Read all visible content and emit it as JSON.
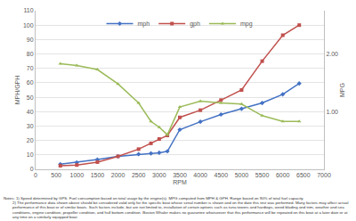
{
  "chart_data": {
    "type": "line",
    "x_label": "RPM",
    "y_label": "MPH/GPH",
    "y2_label": "MPG",
    "x": [
      600,
      1000,
      1500,
      2000,
      2500,
      2800,
      3000,
      3200,
      3500,
      4000,
      4500,
      5000,
      5500,
      6000,
      6400
    ],
    "series": [
      {
        "name": "mph",
        "color": "#4472c4",
        "marker": "diamond",
        "values": [
          3.5,
          4.8,
          6.8,
          9.0,
          10.5,
          11.0,
          11.5,
          12.5,
          27.5,
          33.0,
          38.0,
          42.0,
          46.0,
          52.0,
          59.5
        ]
      },
      {
        "name": "gph",
        "color": "#c0504d",
        "marker": "square",
        "values": [
          2.5,
          3.0,
          5.0,
          9.0,
          14.0,
          18.0,
          21.0,
          23.5,
          36.0,
          41.0,
          48.0,
          55.0,
          75.0,
          93.0,
          100.0
        ]
      },
      {
        "name": "mpg",
        "color": "#9bbb59",
        "marker": "triangle-up",
        "axis": "y2",
        "values": [
          1.83,
          1.8,
          1.73,
          1.48,
          1.15,
          0.83,
          0.73,
          0.6,
          1.08,
          1.18,
          1.15,
          1.13,
          0.93,
          0.83,
          0.83
        ]
      }
    ],
    "xlim": [
      0,
      7000
    ],
    "xticks": [
      0,
      500,
      1000,
      1500,
      2000,
      2500,
      3000,
      3500,
      4000,
      4500,
      5000,
      5500,
      6000,
      6500,
      7000
    ],
    "ylim": [
      0,
      110
    ],
    "yticks": [
      0,
      10,
      20,
      30,
      40,
      50,
      60,
      70,
      80,
      90,
      100,
      110
    ],
    "y2lim": [
      0,
      2.75
    ],
    "y2ticks": [
      {
        "value": 1,
        "label": "1.00"
      },
      {
        "value": 2,
        "label": "2.00"
      }
    ],
    "grid": true,
    "legend": "top",
    "annotations": [
      "Notes: 1) Speed determined by GPS. Fuel consumption based on total usage by the engine(s). MPG computed from MPH & GPH. Range based on 90% of total fuel capacity.",
      "2) The performance data shown above should be considered valid only for the specific boat whose serial number is shown and on the date this test was performed. Many factors may affect actual performance of this boat or of similar boats. Such factors include, but are not limited to, installation of certain options such as tuna towers and hardtops, weed blading and trim, weather and sea conditions, engine condition, propeller condition, and hull bottom condition. Boston Whaler makes no guarantee whatsoever that this performance will be repeated on this boat at a later date or at any time on a similarly equipped boat."
    ]
  }
}
